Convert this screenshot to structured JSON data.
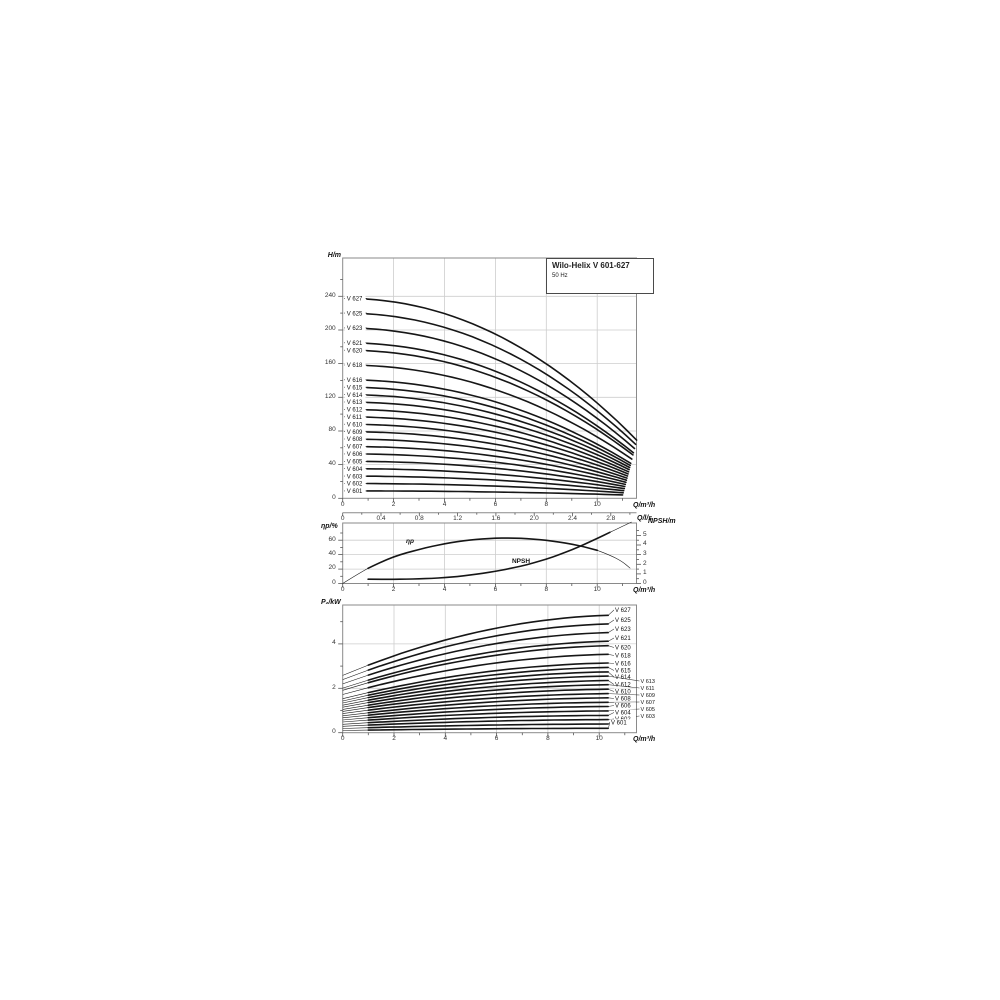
{
  "title_box": {
    "title": "Wilo-Helix V 601-627",
    "frequency": "50 Hz"
  },
  "colors": {
    "curve": "#161616",
    "grid": "#cdcdcd",
    "frame": "#8a8a8a",
    "tick": "#555555",
    "text": "#222222"
  },
  "chart_data": [
    {
      "type": "line",
      "y_axis": {
        "label": "H/m",
        "ticks": [
          0,
          40,
          80,
          120,
          160,
          200,
          240
        ],
        "range": [
          0,
          285
        ]
      },
      "x_axis": {
        "label": "Q/m³/h",
        "ticks": [
          0,
          2,
          4,
          6,
          8,
          10
        ],
        "range": [
          0,
          11.55
        ]
      },
      "x_axis_secondary": {
        "label": "Q/l/s",
        "ticks": [
          "0",
          "0.4",
          "0.8",
          "1.2",
          "1.6",
          "2.0",
          "2.4",
          "2.8"
        ]
      },
      "series": [
        {
          "name": "V 627",
          "h0": 237.6,
          "h_end": 69.2
        },
        {
          "name": "V 625",
          "h0": 220.0,
          "h_end": 64.2
        },
        {
          "name": "V 623",
          "h0": 202.4,
          "h_end": 59.2
        },
        {
          "name": "V 621",
          "h0": 184.8,
          "h_end": 54.1
        },
        {
          "name": "V 620",
          "h0": 176.0,
          "h_end": 51.6
        },
        {
          "name": "V 618",
          "h0": 158.4,
          "h_end": 46.6
        },
        {
          "name": "V 616",
          "h0": 140.8,
          "h_end": 41.6
        },
        {
          "name": "V 615",
          "h0": 132.0,
          "h_end": 39.1
        },
        {
          "name": "V 614",
          "h0": 123.2,
          "h_end": 36.6
        },
        {
          "name": "V 613",
          "h0": 114.4,
          "h_end": 34.1
        },
        {
          "name": "V 612",
          "h0": 105.6,
          "h_end": 31.5
        },
        {
          "name": "V 611",
          "h0": 96.8,
          "h_end": 29.0
        },
        {
          "name": "V 610",
          "h0": 88.0,
          "h_end": 26.5
        },
        {
          "name": "V 609",
          "h0": 79.2,
          "h_end": 24.0
        },
        {
          "name": "V 608",
          "h0": 70.4,
          "h_end": 21.5
        },
        {
          "name": "V 607",
          "h0": 61.6,
          "h_end": 19.0
        },
        {
          "name": "V 606",
          "h0": 52.8,
          "h_end": 16.5
        },
        {
          "name": "V 605",
          "h0": 44.0,
          "h_end": 14.0
        },
        {
          "name": "V 604",
          "h0": 35.2,
          "h_end": 11.5
        },
        {
          "name": "V 603",
          "h0": 26.4,
          "h_end": 9.0
        },
        {
          "name": "V 602",
          "h0": 17.6,
          "h_end": 6.5
        },
        {
          "name": "V 601",
          "h0": 8.8,
          "h_end": 4.0
        }
      ]
    },
    {
      "type": "line",
      "y_axis_left": {
        "label": "ηp/%",
        "ticks": [
          0,
          20,
          40,
          60
        ],
        "range": [
          0,
          83
        ]
      },
      "y_axis_right": {
        "label": "NPSH/m",
        "ticks": [
          0,
          1,
          2,
          3,
          4,
          5
        ],
        "range": [
          0,
          6.45
        ]
      },
      "x_axis": {
        "label": "Q/m³/h",
        "ticks": [
          0,
          2,
          4,
          6,
          8,
          10
        ],
        "range": [
          0,
          11.55
        ]
      },
      "series": [
        {
          "name": "ηp",
          "points": [
            [
              0,
              0
            ],
            [
              0.5,
              11
            ],
            [
              1,
              21
            ],
            [
              1.5,
              29.5
            ],
            [
              2,
              37
            ],
            [
              2.5,
              42.5
            ],
            [
              3,
              47
            ],
            [
              3.5,
              51.5
            ],
            [
              4,
              55
            ],
            [
              4.5,
              58
            ],
            [
              5,
              60.3
            ],
            [
              5.5,
              61.8
            ],
            [
              6,
              62.7
            ],
            [
              6.5,
              63
            ],
            [
              7,
              62.6
            ],
            [
              7.5,
              61.5
            ],
            [
              8,
              59.8
            ],
            [
              8.5,
              57.5
            ],
            [
              9,
              54.5
            ],
            [
              9.5,
              50.8
            ],
            [
              10,
              46
            ],
            [
              10.5,
              39.5
            ],
            [
              11,
              30
            ],
            [
              11.3,
              21
            ]
          ]
        },
        {
          "name": "NPSH",
          "points": [
            [
              1,
              0.45
            ],
            [
              1.5,
              0.44
            ],
            [
              2,
              0.44
            ],
            [
              2.5,
              0.45
            ],
            [
              3,
              0.48
            ],
            [
              3.5,
              0.53
            ],
            [
              4,
              0.61
            ],
            [
              4.5,
              0.72
            ],
            [
              5,
              0.88
            ],
            [
              5.5,
              1.06
            ],
            [
              6,
              1.27
            ],
            [
              6.5,
              1.52
            ],
            [
              7,
              1.8
            ],
            [
              7.5,
              2.14
            ],
            [
              8,
              2.53
            ],
            [
              8.5,
              2.98
            ],
            [
              9,
              3.5
            ],
            [
              9.5,
              4.07
            ],
            [
              10,
              4.68
            ],
            [
              10.5,
              5.32
            ],
            [
              11,
              5.95
            ],
            [
              11.35,
              6.4
            ]
          ]
        }
      ]
    },
    {
      "type": "line",
      "y_axis": {
        "label": "P₂/kW",
        "ticks": [
          0,
          2,
          4
        ],
        "range": [
          0,
          5.75
        ]
      },
      "x_axis": {
        "label": "Q/m³/h",
        "ticks": [
          0,
          2,
          4,
          6,
          8,
          10
        ],
        "range": [
          0,
          11.45
        ]
      },
      "series": [
        {
          "name": "V 627",
          "p0": 2.58,
          "p_end": 5.29
        },
        {
          "name": "V 625",
          "p0": 2.39,
          "p_end": 4.9
        },
        {
          "name": "V 623",
          "p0": 2.2,
          "p_end": 4.51
        },
        {
          "name": "V 621",
          "p0": 2.01,
          "p_end": 4.12
        },
        {
          "name": "V 620",
          "p0": 1.91,
          "p_end": 3.92
        },
        {
          "name": "V 618",
          "p0": 1.72,
          "p_end": 3.53
        },
        {
          "name": "V 616",
          "p0": 1.53,
          "p_end": 3.14
        },
        {
          "name": "V 615",
          "p0": 1.43,
          "p_end": 2.94
        },
        {
          "name": "V 614",
          "p0": 1.34,
          "p_end": 2.74
        },
        {
          "name": "V 613",
          "p0": 1.24,
          "p_end": 2.55
        },
        {
          "name": "V 612",
          "p0": 1.15,
          "p_end": 2.35
        },
        {
          "name": "V 611",
          "p0": 1.05,
          "p_end": 2.16
        },
        {
          "name": "V 610",
          "p0": 0.96,
          "p_end": 1.96
        },
        {
          "name": "V 609",
          "p0": 0.86,
          "p_end": 1.76
        },
        {
          "name": "V 608",
          "p0": 0.76,
          "p_end": 1.57
        },
        {
          "name": "V 607",
          "p0": 0.67,
          "p_end": 1.37
        },
        {
          "name": "V 606",
          "p0": 0.57,
          "p_end": 1.18
        },
        {
          "name": "V 605",
          "p0": 0.48,
          "p_end": 0.98
        },
        {
          "name": "V 604",
          "p0": 0.38,
          "p_end": 0.78
        },
        {
          "name": "V 603",
          "p0": 0.29,
          "p_end": 0.59
        },
        {
          "name": "V 602",
          "p0": 0.19,
          "p_end": 0.39
        },
        {
          "name": "V 601",
          "p0": 0.1,
          "p_end": 0.2
        }
      ]
    }
  ]
}
